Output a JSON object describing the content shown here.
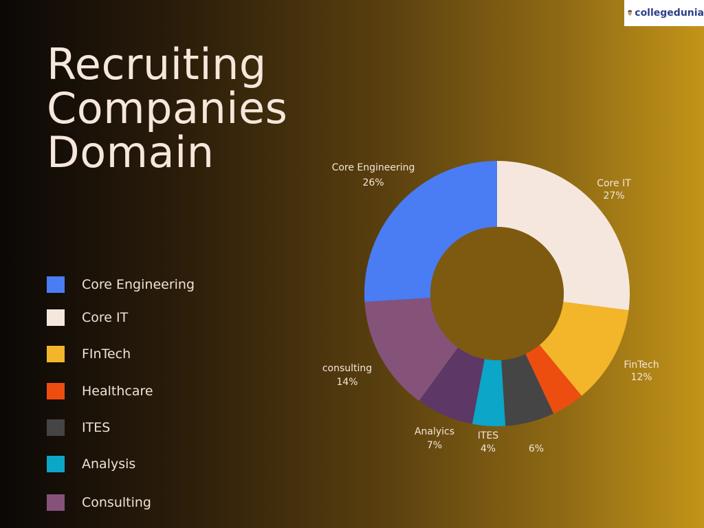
{
  "logo": {
    "text": "collegedunia"
  },
  "title_lines": [
    "Recruiting",
    "Companies",
    "Domain"
  ],
  "legend": [
    {
      "label": "Core Engineering",
      "color": "#4a7cf4"
    },
    {
      "label": "Core IT",
      "color": "#f5e7dd"
    },
    {
      "label": "FInTech",
      "color": "#f3b52a"
    },
    {
      "label": "Healthcare",
      "color": "#ee4d10"
    },
    {
      "label": "ITES",
      "color": "#454545"
    },
    {
      "label": "Analysis",
      "color": "#0ba6c8"
    },
    {
      "label": "Consulting",
      "color": "#85527a"
    }
  ],
  "chart_data": {
    "type": "pie",
    "title": "Recruiting Companies Domain",
    "slices": [
      {
        "label": "Core IT",
        "value": 27,
        "value_label": "27%",
        "color": "#f5e7dd"
      },
      {
        "label": "FinTech",
        "value": 12,
        "value_label": "12%",
        "color": "#f3b52a"
      },
      {
        "label": "Healthcare",
        "value": 4,
        "value_label": "",
        "color": "#ee4d10"
      },
      {
        "label": "",
        "value": 6,
        "value_label": "6%",
        "color": "#454545"
      },
      {
        "label": "ITES",
        "value": 4,
        "value_label": "4%",
        "color": "#0ba6c8"
      },
      {
        "label": "Analyics",
        "value": 7,
        "value_label": "7%",
        "color": "#5d3766"
      },
      {
        "label": "consulting",
        "value": 14,
        "value_label": "14%",
        "color": "#85527a"
      },
      {
        "label": "Core Engineering",
        "value": 26,
        "value_label": "26%",
        "color": "#4a7cf4"
      }
    ],
    "hole_color": "#7d5a10"
  }
}
